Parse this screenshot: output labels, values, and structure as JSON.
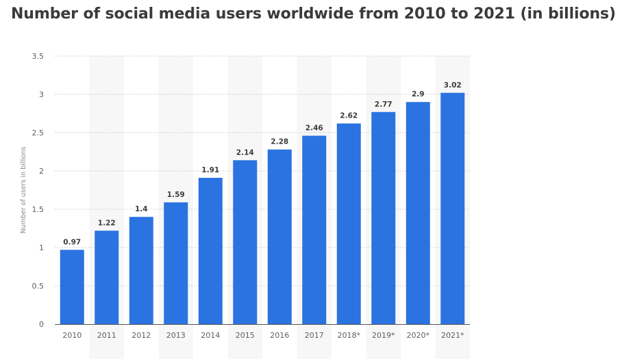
{
  "chart_data": {
    "type": "bar",
    "title": "Number of social media users worldwide from 2010 to 2021 (in billions)",
    "xlabel": "",
    "ylabel": "Number of users in billions",
    "categories": [
      "2010",
      "2011",
      "2012",
      "2013",
      "2014",
      "2015",
      "2016",
      "2017",
      "2018*",
      "2019*",
      "2020*",
      "2021*"
    ],
    "values": [
      0.97,
      1.22,
      1.4,
      1.59,
      1.91,
      2.14,
      2.28,
      2.46,
      2.62,
      2.77,
      2.9,
      3.02
    ],
    "value_labels": [
      "0.97",
      "1.22",
      "1.4",
      "1.59",
      "1.91",
      "2.14",
      "2.28",
      "2.46",
      "2.62",
      "2.77",
      "2.9",
      "3.02"
    ],
    "ylim": [
      0,
      3.5
    ],
    "yticks": [
      0,
      0.5,
      1,
      1.5,
      2,
      2.5,
      3,
      3.5
    ],
    "ytick_labels": [
      "0",
      "0.5",
      "1",
      "1.5",
      "2",
      "2.5",
      "3",
      "3.5"
    ],
    "grid": true,
    "legend": "none",
    "colors": {
      "bar": "#2a73e0",
      "grid": "#c8c8c8",
      "band": "#f7f7f7",
      "axis": "#555555"
    }
  }
}
